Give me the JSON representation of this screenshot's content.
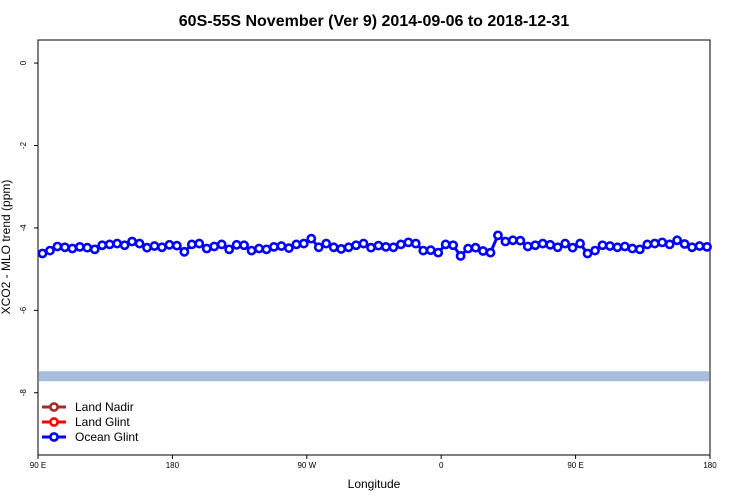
{
  "chart_data": {
    "type": "line",
    "title": "60S-55S November (Ver 9)   2014-09-06 to 2018-12-31",
    "x_label": "Longitude",
    "y_label": "XCO2 - MLO trend (ppm)",
    "xlim": [
      90,
      540
    ],
    "ylim": [
      -9.51,
      0.56
    ],
    "xticks": [
      {
        "value": 90,
        "label": "90 E"
      },
      180,
      {
        "value": 270,
        "label": "90 W"
      },
      {
        "value": 360,
        "label": "0"
      },
      {
        "value": 450,
        "label": "90 E"
      },
      {
        "value": 540,
        "label": "180"
      }
    ],
    "yticks": [
      0,
      -2,
      -4,
      -6,
      -8
    ],
    "band": {
      "y": -7.6,
      "color": "#a6bddb"
    },
    "legend": "bottom-left",
    "x": [
      93,
      98,
      103,
      108,
      113,
      118,
      123,
      128,
      133,
      138,
      143,
      148,
      153,
      158,
      163,
      168,
      173,
      178,
      183,
      188,
      193,
      198,
      203,
      208,
      213,
      218,
      223,
      228,
      233,
      238,
      243,
      248,
      253,
      258,
      263,
      268,
      273,
      278,
      283,
      288,
      293,
      298,
      303,
      308,
      313,
      318,
      323,
      328,
      333,
      338,
      343,
      348,
      353,
      358,
      363,
      368,
      373,
      378,
      383,
      388,
      393,
      398,
      403,
      408,
      413,
      418,
      423,
      428,
      433,
      438,
      443,
      448,
      453,
      458,
      463,
      468,
      473,
      478,
      483,
      488,
      493,
      498,
      503,
      508,
      513,
      518,
      523,
      528,
      533,
      538
    ],
    "series": [
      {
        "name": "Land Nadir",
        "color": "#a52a2a",
        "values": [
          null,
          null,
          null,
          null,
          null,
          null,
          null,
          null,
          null,
          null,
          null,
          null,
          null,
          null,
          null,
          null,
          null,
          null,
          null,
          null,
          null,
          null,
          null,
          null,
          null,
          null,
          null,
          null,
          null,
          null,
          null,
          null,
          null,
          null,
          null,
          null,
          null,
          null,
          null,
          null,
          null,
          null,
          null,
          null,
          null,
          null,
          null,
          null,
          null,
          null,
          null,
          null,
          null,
          null,
          null,
          null,
          null,
          null,
          null,
          null,
          null,
          null,
          null,
          null,
          null,
          null,
          null,
          null,
          null,
          null,
          null,
          null,
          null,
          null,
          null,
          null,
          null,
          null,
          null,
          null,
          null,
          null,
          null,
          null,
          null,
          null,
          null,
          null,
          null,
          null
        ]
      },
      {
        "name": "Land Glint",
        "color": "#ff0000",
        "values": [
          null,
          null,
          null,
          null,
          null,
          null,
          null,
          null,
          null,
          null,
          null,
          null,
          null,
          null,
          null,
          null,
          null,
          null,
          null,
          null,
          null,
          null,
          null,
          null,
          null,
          null,
          null,
          null,
          null,
          null,
          null,
          null,
          null,
          null,
          null,
          null,
          null,
          null,
          null,
          null,
          null,
          null,
          null,
          null,
          null,
          null,
          null,
          null,
          null,
          null,
          null,
          null,
          null,
          null,
          null,
          null,
          null,
          null,
          null,
          null,
          null,
          null,
          null,
          null,
          null,
          null,
          null,
          null,
          null,
          null,
          null,
          null,
          null,
          null,
          null,
          null,
          null,
          null,
          null,
          null,
          null,
          null,
          null,
          null,
          null,
          null,
          null,
          null,
          null,
          null
        ]
      },
      {
        "name": "Ocean Glint",
        "color": "#0000ff",
        "values": [
          -4.62,
          -4.55,
          -4.45,
          -4.47,
          -4.5,
          -4.46,
          -4.48,
          -4.52,
          -4.42,
          -4.4,
          -4.38,
          -4.42,
          -4.33,
          -4.38,
          -4.48,
          -4.44,
          -4.47,
          -4.41,
          -4.43,
          -4.58,
          -4.4,
          -4.38,
          -4.5,
          -4.45,
          -4.4,
          -4.52,
          -4.41,
          -4.42,
          -4.55,
          -4.5,
          -4.52,
          -4.46,
          -4.44,
          -4.49,
          -4.4,
          -4.38,
          -4.26,
          -4.47,
          -4.38,
          -4.47,
          -4.51,
          -4.47,
          -4.42,
          -4.38,
          -4.48,
          -4.43,
          -4.46,
          -4.47,
          -4.4,
          -4.35,
          -4.38,
          -4.55,
          -4.54,
          -4.6,
          -4.4,
          -4.42,
          -4.68,
          -4.5,
          -4.48,
          -4.56,
          -4.6,
          -4.18,
          -4.33,
          -4.3,
          -4.31,
          -4.45,
          -4.42,
          -4.38,
          -4.41,
          -4.47,
          -4.38,
          -4.48,
          -4.38,
          -4.62,
          -4.55,
          -4.42,
          -4.44,
          -4.47,
          -4.45,
          -4.5,
          -4.52,
          -4.4,
          -4.38,
          -4.35,
          -4.4,
          -4.3,
          -4.39,
          -4.47,
          -4.44,
          -4.46
        ]
      }
    ]
  }
}
